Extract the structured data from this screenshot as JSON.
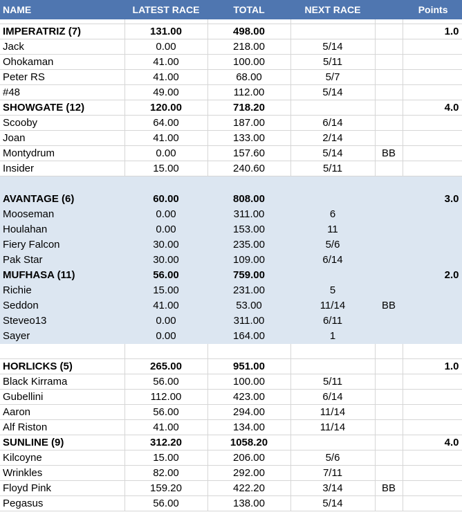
{
  "headers": [
    "NAME",
    "LATEST RACE",
    "TOTAL",
    "NEXT RACE",
    "",
    "Points"
  ],
  "groups": [
    {
      "shaded": false,
      "teams": [
        {
          "name": "IMPERATRIZ (7)",
          "latest": "131.00",
          "total": "498.00",
          "points": "1.0",
          "members": [
            {
              "name": "Jack",
              "latest": "0.00",
              "total": "218.00",
              "next": "5/14",
              "flag": ""
            },
            {
              "name": "Ohokaman",
              "latest": "41.00",
              "total": "100.00",
              "next": "5/11",
              "flag": ""
            },
            {
              "name": "Peter RS",
              "latest": "41.00",
              "total": "68.00",
              "next": "5/7",
              "flag": ""
            },
            {
              "name": "#48",
              "latest": "49.00",
              "total": "112.00",
              "next": "5/14",
              "flag": ""
            }
          ]
        },
        {
          "name": "SHOWGATE (12)",
          "latest": "120.00",
          "total": "718.20",
          "points": "4.0",
          "members": [
            {
              "name": "Scooby",
              "latest": "64.00",
              "total": "187.00",
              "next": "6/14",
              "flag": ""
            },
            {
              "name": "Joan",
              "latest": "41.00",
              "total": "133.00",
              "next": "2/14",
              "flag": ""
            },
            {
              "name": "Montydrum",
              "latest": "0.00",
              "total": "157.60",
              "next": "5/14",
              "flag": "BB"
            },
            {
              "name": "Insider",
              "latest": "15.00",
              "total": "240.60",
              "next": "5/11",
              "flag": ""
            }
          ]
        }
      ]
    },
    {
      "shaded": true,
      "teams": [
        {
          "name": "AVANTAGE (6)",
          "latest": "60.00",
          "total": "808.00",
          "points": "3.0",
          "members": [
            {
              "name": "Mooseman",
              "latest": "0.00",
              "total": "311.00",
              "next": "6",
              "flag": ""
            },
            {
              "name": "Houlahan",
              "latest": "0.00",
              "total": "153.00",
              "next": "11",
              "flag": ""
            },
            {
              "name": "Fiery Falcon",
              "latest": "30.00",
              "total": "235.00",
              "next": "5/6",
              "flag": ""
            },
            {
              "name": "Pak Star",
              "latest": "30.00",
              "total": "109.00",
              "next": "6/14",
              "flag": ""
            }
          ]
        },
        {
          "name": "MUFHASA (11)",
          "latest": "56.00",
          "total": "759.00",
          "points": "2.0",
          "members": [
            {
              "name": "Richie",
              "latest": "15.00",
              "total": "231.00",
              "next": "5",
              "flag": ""
            },
            {
              "name": "Seddon",
              "latest": "41.00",
              "total": "53.00",
              "next": "11/14",
              "flag": "BB"
            },
            {
              "name": "Steveo13",
              "latest": "0.00",
              "total": "311.00",
              "next": "6/11",
              "flag": ""
            },
            {
              "name": "Sayer",
              "latest": "0.00",
              "total": "164.00",
              "next": "1",
              "flag": ""
            }
          ]
        }
      ]
    },
    {
      "shaded": false,
      "teams": [
        {
          "name": "HORLICKS (5)",
          "latest": "265.00",
          "total": "951.00",
          "points": "1.0",
          "members": [
            {
              "name": "Black Kirrama",
              "latest": "56.00",
              "total": "100.00",
              "next": "5/11",
              "flag": ""
            },
            {
              "name": "Gubellini",
              "latest": "112.00",
              "total": "423.00",
              "next": "6/14",
              "flag": ""
            },
            {
              "name": "Aaron",
              "latest": "56.00",
              "total": "294.00",
              "next": "11/14",
              "flag": ""
            },
            {
              "name": "Alf Riston",
              "latest": "41.00",
              "total": "134.00",
              "next": "11/14",
              "flag": ""
            }
          ]
        },
        {
          "name": "SUNLINE (9)",
          "latest": "312.20",
          "total": "1058.20",
          "points": "4.0",
          "members": [
            {
              "name": "Kilcoyne",
              "latest": "15.00",
              "total": "206.00",
              "next": "5/6",
              "flag": ""
            },
            {
              "name": "Wrinkles",
              "latest": "82.00",
              "total": "292.00",
              "next": "7/11",
              "flag": ""
            },
            {
              "name": "Floyd Pink",
              "latest": "159.20",
              "total": "422.20",
              "next": "3/14",
              "flag": "BB"
            },
            {
              "name": "Pegasus",
              "latest": "56.00",
              "total": "138.00",
              "next": "5/14",
              "flag": ""
            }
          ]
        }
      ]
    }
  ]
}
